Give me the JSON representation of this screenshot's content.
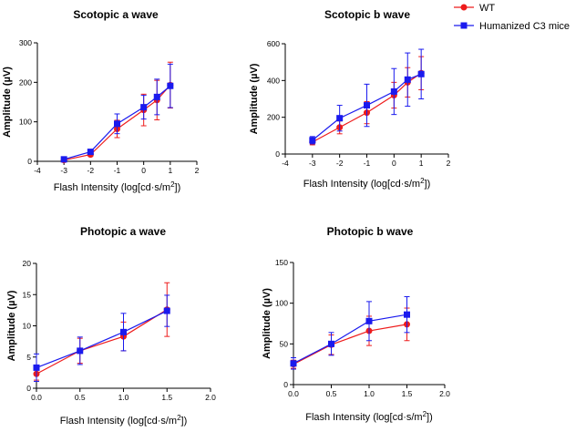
{
  "legend": [
    {
      "name": "WT",
      "color": "#ee1c1c",
      "marker": "circle"
    },
    {
      "name": "Humanized C3 mice",
      "color": "#1a1aee",
      "marker": "square"
    }
  ],
  "chart_data": [
    {
      "type": "line",
      "title": "Scotopic a wave",
      "xlabel": "Flash Intensity (log[cd·s/m",
      "xlabel_sup": "2",
      "xlabel_end": "])",
      "ylabel": "Amplitude (µV)",
      "xlim": [
        -4,
        2
      ],
      "ylim": [
        0,
        300
      ],
      "xticks": [
        -4,
        -3,
        -2,
        -1,
        0,
        1,
        2
      ],
      "yticks": [
        0,
        100,
        200,
        300
      ],
      "series": [
        {
          "name": "WT",
          "x": [
            -3,
            -2,
            -1,
            0,
            0.5,
            1
          ],
          "y": [
            3,
            17,
            82,
            130,
            155,
            193
          ],
          "err": [
            3,
            4,
            22,
            40,
            50,
            58
          ]
        },
        {
          "name": "Humanized C3 mice",
          "x": [
            -3,
            -2,
            -1,
            0,
            0.5,
            1
          ],
          "y": [
            5,
            24,
            95,
            137,
            163,
            191
          ],
          "err": [
            3,
            5,
            25,
            30,
            45,
            55
          ]
        }
      ]
    },
    {
      "type": "line",
      "title": "Scotopic b wave",
      "xlabel": "Flash Intensity (log[cd·s/m",
      "xlabel_sup": "2",
      "xlabel_end": "])",
      "ylabel": "Amplitude (µV)",
      "xlim": [
        -4,
        2
      ],
      "ylim": [
        0,
        600
      ],
      "xticks": [
        -4,
        -3,
        -2,
        -1,
        0,
        1,
        2
      ],
      "yticks": [
        0,
        200,
        400,
        600
      ],
      "series": [
        {
          "name": "WT",
          "x": [
            -3,
            -2,
            -1,
            0,
            0.5,
            1
          ],
          "y": [
            65,
            145,
            225,
            320,
            390,
            440
          ],
          "err": [
            15,
            35,
            60,
            70,
            80,
            90
          ]
        },
        {
          "name": "Humanized C3 mice",
          "x": [
            -3,
            -2,
            -1,
            0,
            0.5,
            1
          ],
          "y": [
            75,
            195,
            265,
            340,
            405,
            435
          ],
          "err": [
            20,
            70,
            115,
            125,
            145,
            135
          ]
        }
      ]
    },
    {
      "type": "line",
      "title": "Photopic a wave",
      "xlabel": "Flash Intensity (log[cd·s/m",
      "xlabel_sup": "2",
      "xlabel_end": "])",
      "ylabel": "Amplitude (µV)",
      "xlim": [
        0,
        2
      ],
      "ylim": [
        0,
        20
      ],
      "xticks": [
        0.0,
        0.5,
        1.0,
        1.5,
        2.0
      ],
      "xtick_labels": [
        "0.0",
        "0.5",
        "1.0",
        "1.5",
        "2.0"
      ],
      "yticks": [
        0,
        5,
        10,
        15,
        20
      ],
      "series": [
        {
          "name": "WT",
          "x": [
            0,
            0.5,
            1,
            1.5
          ],
          "y": [
            2.3,
            6.0,
            8.3,
            12.6
          ],
          "err": [
            1.0,
            2.0,
            2.3,
            4.3
          ]
        },
        {
          "name": "Humanized C3 mice",
          "x": [
            0,
            0.5,
            1,
            1.5
          ],
          "y": [
            3.3,
            6.0,
            9.0,
            12.4
          ],
          "err": [
            2.2,
            2.2,
            3.0,
            2.5
          ]
        }
      ]
    },
    {
      "type": "line",
      "title": "Photopic b wave",
      "xlabel": "Flash Intensity (log[cd·s/m",
      "xlabel_sup": "2",
      "xlabel_end": "])",
      "ylabel": "Amplitude (µV)",
      "xlim": [
        0,
        2
      ],
      "ylim": [
        0,
        150
      ],
      "xticks": [
        0.0,
        0.5,
        1.0,
        1.5,
        2.0
      ],
      "xtick_labels": [
        "0.0",
        "0.5",
        "1.0",
        "1.5",
        "2.0"
      ],
      "yticks": [
        0,
        50,
        100,
        150
      ],
      "series": [
        {
          "name": "WT",
          "x": [
            0,
            0.5,
            1,
            1.5
          ],
          "y": [
            25,
            49,
            66,
            74
          ],
          "err": [
            5,
            12,
            18,
            20
          ]
        },
        {
          "name": "Humanized C3 mice",
          "x": [
            0,
            0.5,
            1,
            1.5
          ],
          "y": [
            26,
            50,
            78,
            86
          ],
          "err": [
            7,
            14,
            24,
            22
          ]
        }
      ]
    }
  ]
}
